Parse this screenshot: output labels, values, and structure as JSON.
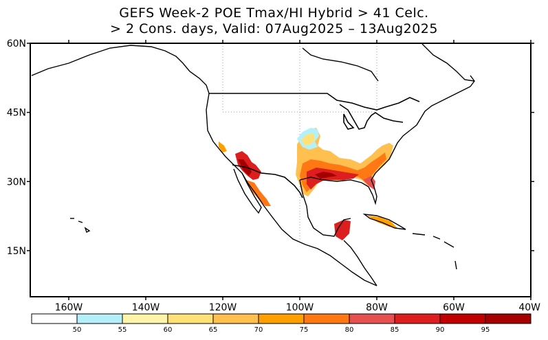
{
  "title": {
    "line1": "GEFS Week-2 POE Tmax/HI Hybrid > 41 Celc.",
    "line2": "> 2 Cons. days, Valid: 07Aug2025 – 13Aug2025"
  },
  "map": {
    "lat_labels": [
      {
        "lat": 60,
        "label": "60N"
      },
      {
        "lat": 45,
        "label": "45N"
      },
      {
        "lat": 30,
        "label": "30N"
      },
      {
        "lat": 15,
        "label": "15N"
      }
    ],
    "lon_labels": [
      {
        "lon": -160,
        "label": "160W"
      },
      {
        "lon": -140,
        "label": "140W"
      },
      {
        "lon": -120,
        "label": "120W"
      },
      {
        "lon": -100,
        "label": "100W"
      },
      {
        "lon": -80,
        "label": "80W"
      },
      {
        "lon": -60,
        "label": "60W"
      },
      {
        "lon": -40,
        "label": "40W"
      }
    ],
    "extent": {
      "lon_min": -170,
      "lon_max": -40,
      "lat_min": 5,
      "lat_max": 60
    }
  },
  "colorbar": {
    "colors": [
      "#ffffff",
      "#b4f0fa",
      "#fff5aa",
      "#ffe178",
      "#ffc050",
      "#ffa000",
      "#ff7814",
      "#e65050",
      "#dc1e1e",
      "#c00000",
      "#a50000"
    ],
    "labels": [
      "50",
      "55",
      "60",
      "65",
      "70",
      "75",
      "80",
      "85",
      "90",
      "95"
    ]
  }
}
